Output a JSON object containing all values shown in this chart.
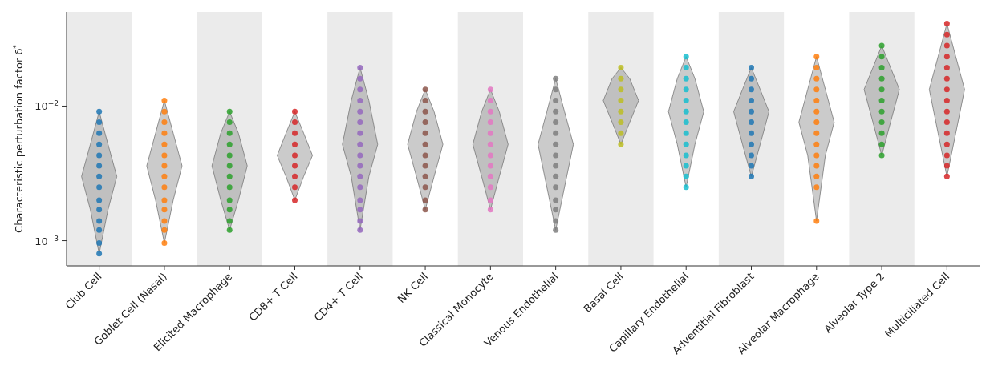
{
  "chart_data": {
    "type": "scatter",
    "ylabel": "Characteristic perturbation factor δ$^{*}$",
    "categories": [
      "Club Cell",
      "Goblet Cell (Nasal)",
      "Elicited Macrophage",
      "CD8+ T Cell",
      "CD4+ T Cell",
      "NK Cell",
      "Classical Monocyte",
      "Venous Endothelial",
      "Basal Cell",
      "Capillary Endothelial",
      "Adventitial Fibroblast",
      "Alveolar Macrophage",
      "Alveolar Type 2",
      "Multiciliated Cell"
    ],
    "log": true,
    "ylim": [
      0.00065,
      0.05
    ],
    "yticks": [
      {
        "value": 0.001,
        "label": "10$^{−3}$"
      },
      {
        "value": 0.01,
        "label": "10$^{−2}$"
      }
    ],
    "grid": false,
    "series": [
      {
        "type": "scatter",
        "color": "#1f77b4",
        "x": [
          "Club Cell",
          "Club Cell",
          "Club Cell",
          "Club Cell",
          "Club Cell",
          "Club Cell",
          "Club Cell",
          "Club Cell",
          "Club Cell",
          "Club Cell",
          "Club Cell",
          "Club Cell",
          "Club Cell",
          "Club Cell"
        ],
        "values": [
          0.0091,
          0.0076,
          0.0063,
          0.0052,
          0.0043,
          0.0036,
          0.003,
          0.0025,
          0.002,
          0.0017,
          0.0014,
          0.0012,
          0.00096,
          0.0008
        ]
      },
      {
        "type": "scatter",
        "color": "#ff7f0e",
        "x": [
          "Goblet Cell (Nasal)",
          "Goblet Cell (Nasal)",
          "Goblet Cell (Nasal)",
          "Goblet Cell (Nasal)",
          "Goblet Cell (Nasal)",
          "Goblet Cell (Nasal)",
          "Goblet Cell (Nasal)",
          "Goblet Cell (Nasal)",
          "Goblet Cell (Nasal)",
          "Goblet Cell (Nasal)",
          "Goblet Cell (Nasal)",
          "Goblet Cell (Nasal)",
          "Goblet Cell (Nasal)",
          "Goblet Cell (Nasal)"
        ],
        "values": [
          0.011,
          0.0091,
          0.0076,
          0.0063,
          0.0052,
          0.0043,
          0.0036,
          0.003,
          0.0025,
          0.002,
          0.0017,
          0.0014,
          0.0012,
          0.00096
        ]
      },
      {
        "type": "scatter",
        "color": "#2ca02c",
        "x": [
          "Elicited Macrophage",
          "Elicited Macrophage",
          "Elicited Macrophage",
          "Elicited Macrophage",
          "Elicited Macrophage",
          "Elicited Macrophage",
          "Elicited Macrophage",
          "Elicited Macrophage",
          "Elicited Macrophage",
          "Elicited Macrophage",
          "Elicited Macrophage",
          "Elicited Macrophage"
        ],
        "values": [
          0.0091,
          0.0076,
          0.0063,
          0.0052,
          0.0043,
          0.0036,
          0.003,
          0.0025,
          0.002,
          0.0017,
          0.0014,
          0.0012
        ]
      },
      {
        "type": "scatter",
        "color": "#d62728",
        "x": [
          "CD8+ T Cell",
          "CD8+ T Cell",
          "CD8+ T Cell",
          "CD8+ T Cell",
          "CD8+ T Cell",
          "CD8+ T Cell",
          "CD8+ T Cell",
          "CD8+ T Cell",
          "CD8+ T Cell"
        ],
        "values": [
          0.0091,
          0.0076,
          0.0063,
          0.0052,
          0.0043,
          0.0036,
          0.003,
          0.0025,
          0.002
        ]
      },
      {
        "type": "scatter",
        "color": "#9467bd",
        "x": [
          "CD4+ T Cell",
          "CD4+ T Cell",
          "CD4+ T Cell",
          "CD4+ T Cell",
          "CD4+ T Cell",
          "CD4+ T Cell",
          "CD4+ T Cell",
          "CD4+ T Cell",
          "CD4+ T Cell",
          "CD4+ T Cell",
          "CD4+ T Cell",
          "CD4+ T Cell",
          "CD4+ T Cell",
          "CD4+ T Cell",
          "CD4+ T Cell",
          "CD4+ T Cell"
        ],
        "values": [
          0.0193,
          0.016,
          0.0133,
          0.011,
          0.0091,
          0.0076,
          0.0063,
          0.0052,
          0.0043,
          0.0036,
          0.003,
          0.0025,
          0.002,
          0.0017,
          0.0014,
          0.0012
        ]
      },
      {
        "type": "scatter",
        "color": "#8c564b",
        "x": [
          "NK Cell",
          "NK Cell",
          "NK Cell",
          "NK Cell",
          "NK Cell",
          "NK Cell",
          "NK Cell",
          "NK Cell",
          "NK Cell",
          "NK Cell",
          "NK Cell",
          "NK Cell"
        ],
        "values": [
          0.0133,
          0.011,
          0.0091,
          0.0076,
          0.0063,
          0.0052,
          0.0043,
          0.0036,
          0.003,
          0.0025,
          0.002,
          0.0017
        ]
      },
      {
        "type": "scatter",
        "color": "#e377c2",
        "x": [
          "Classical Monocyte",
          "Classical Monocyte",
          "Classical Monocyte",
          "Classical Monocyte",
          "Classical Monocyte",
          "Classical Monocyte",
          "Classical Monocyte",
          "Classical Monocyte",
          "Classical Monocyte",
          "Classical Monocyte",
          "Classical Monocyte",
          "Classical Monocyte"
        ],
        "values": [
          0.0133,
          0.011,
          0.0091,
          0.0076,
          0.0063,
          0.0052,
          0.0043,
          0.0036,
          0.003,
          0.0025,
          0.002,
          0.0017
        ]
      },
      {
        "type": "scatter",
        "color": "#7f7f7f",
        "x": [
          "Venous Endothelial",
          "Venous Endothelial",
          "Venous Endothelial",
          "Venous Endothelial",
          "Venous Endothelial",
          "Venous Endothelial",
          "Venous Endothelial",
          "Venous Endothelial",
          "Venous Endothelial",
          "Venous Endothelial",
          "Venous Endothelial",
          "Venous Endothelial",
          "Venous Endothelial",
          "Venous Endothelial",
          "Venous Endothelial"
        ],
        "values": [
          0.016,
          0.0133,
          0.011,
          0.0091,
          0.0076,
          0.0063,
          0.0052,
          0.0043,
          0.0036,
          0.003,
          0.0025,
          0.002,
          0.0017,
          0.0014,
          0.0012
        ]
      },
      {
        "type": "scatter",
        "color": "#bcbd22",
        "x": [
          "Basal Cell",
          "Basal Cell",
          "Basal Cell",
          "Basal Cell",
          "Basal Cell",
          "Basal Cell",
          "Basal Cell",
          "Basal Cell"
        ],
        "values": [
          0.0193,
          0.016,
          0.0133,
          0.011,
          0.0091,
          0.0076,
          0.0063,
          0.0052
        ]
      },
      {
        "type": "scatter",
        "color": "#17becf",
        "x": [
          "Capillary Endothelial",
          "Capillary Endothelial",
          "Capillary Endothelial",
          "Capillary Endothelial",
          "Capillary Endothelial",
          "Capillary Endothelial",
          "Capillary Endothelial",
          "Capillary Endothelial",
          "Capillary Endothelial",
          "Capillary Endothelial",
          "Capillary Endothelial",
          "Capillary Endothelial",
          "Capillary Endothelial"
        ],
        "values": [
          0.0233,
          0.0193,
          0.016,
          0.0133,
          0.011,
          0.0091,
          0.0076,
          0.0063,
          0.0052,
          0.0043,
          0.0036,
          0.003,
          0.0025
        ]
      },
      {
        "type": "scatter",
        "color": "#1f77b4",
        "x": [
          "Adventitial Fibroblast",
          "Adventitial Fibroblast",
          "Adventitial Fibroblast",
          "Adventitial Fibroblast",
          "Adventitial Fibroblast",
          "Adventitial Fibroblast",
          "Adventitial Fibroblast",
          "Adventitial Fibroblast",
          "Adventitial Fibroblast",
          "Adventitial Fibroblast",
          "Adventitial Fibroblast"
        ],
        "values": [
          0.0193,
          0.016,
          0.0133,
          0.011,
          0.0091,
          0.0076,
          0.0063,
          0.0052,
          0.0043,
          0.0036,
          0.003
        ]
      },
      {
        "type": "scatter",
        "color": "#ff7f0e",
        "x": [
          "Alveolar Macrophage",
          "Alveolar Macrophage",
          "Alveolar Macrophage",
          "Alveolar Macrophage",
          "Alveolar Macrophage",
          "Alveolar Macrophage",
          "Alveolar Macrophage",
          "Alveolar Macrophage",
          "Alveolar Macrophage",
          "Alveolar Macrophage",
          "Alveolar Macrophage",
          "Alveolar Macrophage",
          "Alveolar Macrophage",
          "Alveolar Macrophage"
        ],
        "values": [
          0.0233,
          0.0193,
          0.016,
          0.0133,
          0.011,
          0.0091,
          0.0076,
          0.0063,
          0.0052,
          0.0043,
          0.0036,
          0.003,
          0.0025,
          0.0014
        ]
      },
      {
        "type": "scatter",
        "color": "#2ca02c",
        "x": [
          "Alveolar Type 2",
          "Alveolar Type 2",
          "Alveolar Type 2",
          "Alveolar Type 2",
          "Alveolar Type 2",
          "Alveolar Type 2",
          "Alveolar Type 2",
          "Alveolar Type 2",
          "Alveolar Type 2",
          "Alveolar Type 2",
          "Alveolar Type 2"
        ],
        "values": [
          0.0281,
          0.0233,
          0.0193,
          0.016,
          0.0133,
          0.011,
          0.0091,
          0.0076,
          0.0063,
          0.0052,
          0.0043
        ]
      },
      {
        "type": "scatter",
        "color": "#d62728",
        "x": [
          "Multiciliated Cell",
          "Multiciliated Cell",
          "Multiciliated Cell",
          "Multiciliated Cell",
          "Multiciliated Cell",
          "Multiciliated Cell",
          "Multiciliated Cell",
          "Multiciliated Cell",
          "Multiciliated Cell",
          "Multiciliated Cell",
          "Multiciliated Cell",
          "Multiciliated Cell",
          "Multiciliated Cell",
          "Multiciliated Cell",
          "Multiciliated Cell"
        ],
        "values": [
          0.041,
          0.034,
          0.0281,
          0.0233,
          0.0193,
          0.016,
          0.0133,
          0.011,
          0.0091,
          0.0076,
          0.0063,
          0.0052,
          0.0043,
          0.0036,
          0.003
        ]
      }
    ],
    "bands": [
      {
        "axis": "x",
        "from": "Club Cell",
        "to": "Club Cell",
        "color": "#ebebeb"
      },
      {
        "axis": "x",
        "from": "Elicited Macrophage",
        "to": "Elicited Macrophage",
        "color": "#ebebeb"
      },
      {
        "axis": "x",
        "from": "CD4+ T Cell",
        "to": "CD4+ T Cell",
        "color": "#ebebeb"
      },
      {
        "axis": "x",
        "from": "Classical Monocyte",
        "to": "Classical Monocyte",
        "color": "#ebebeb"
      },
      {
        "axis": "x",
        "from": "Basal Cell",
        "to": "Basal Cell",
        "color": "#ebebeb"
      },
      {
        "axis": "x",
        "from": "Adventitial Fibroblast",
        "to": "Adventitial Fibroblast",
        "color": "#ebebeb"
      },
      {
        "axis": "x",
        "from": "Alveolar Type 2",
        "to": "Alveolar Type 2",
        "color": "#ebebeb"
      }
    ]
  }
}
